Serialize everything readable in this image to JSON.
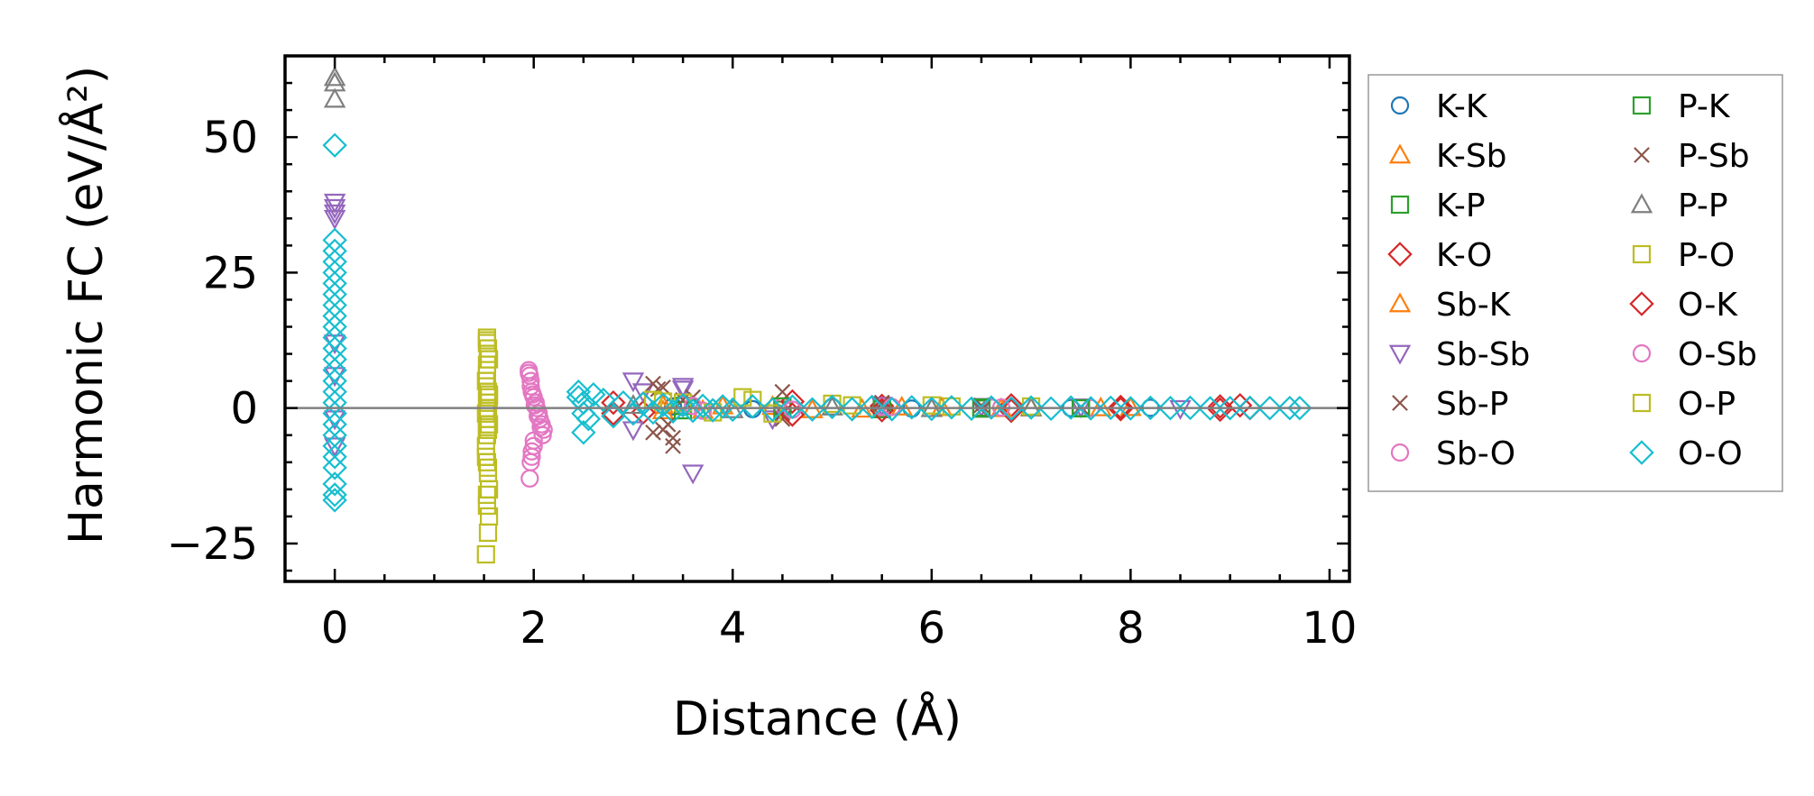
{
  "chart_data": {
    "type": "scatter",
    "title": "",
    "xlabel": "Distance (Å)",
    "ylabel": "Harmonic FC (eV/Å²)",
    "xlim": [
      -0.5,
      10.2
    ],
    "ylim": [
      -32,
      65
    ],
    "xticks": [
      0,
      2,
      4,
      6,
      8,
      10
    ],
    "yticks": [
      -25,
      0,
      25,
      50
    ],
    "ytick_labels": [
      "−25",
      "0",
      "25",
      "50"
    ],
    "xtick_labels": [
      "0",
      "2",
      "4",
      "6",
      "8",
      "10"
    ],
    "zero_line": true,
    "grid": false,
    "legend": {
      "placement": "outside-right",
      "columns": 2
    },
    "series": [
      {
        "name": "K-K",
        "marker": "circle",
        "color": "#1f77b4",
        "points": [
          [
            3.4,
            0.3
          ],
          [
            4.2,
            -0.2
          ],
          [
            5.0,
            0.2
          ],
          [
            5.8,
            -0.1
          ],
          [
            6.6,
            0.1
          ],
          [
            7.4,
            0.0
          ],
          [
            8.2,
            0.05
          ]
        ]
      },
      {
        "name": "K-Sb",
        "marker": "triangle-up",
        "color": "#ff7f0e",
        "points": [
          [
            3.3,
            0.5
          ],
          [
            3.7,
            -0.4
          ],
          [
            4.4,
            0.3
          ],
          [
            5.3,
            -0.2
          ],
          [
            6.1,
            0.1
          ],
          [
            7.0,
            0.0
          ],
          [
            8.0,
            0.1
          ]
        ]
      },
      {
        "name": "K-P",
        "marker": "square",
        "color": "#2ca02c",
        "points": [
          [
            3.5,
            0.4
          ],
          [
            4.5,
            -0.3
          ],
          [
            5.5,
            0.2
          ],
          [
            6.5,
            -0.1
          ],
          [
            7.5,
            0.05
          ]
        ]
      },
      {
        "name": "K-O",
        "marker": "diamond",
        "color": "#d62728",
        "points": [
          [
            2.8,
            1.0
          ],
          [
            3.1,
            -0.8
          ],
          [
            4.6,
            1.2
          ],
          [
            5.5,
            0.4
          ],
          [
            6.8,
            0.5
          ],
          [
            7.9,
            0.2
          ],
          [
            8.9,
            0.3
          ],
          [
            9.2,
            0.0
          ]
        ]
      },
      {
        "name": "Sb-K",
        "marker": "triangle-up",
        "color": "#ff7f0e",
        "points": [
          [
            3.3,
            -0.5
          ],
          [
            3.9,
            0.4
          ],
          [
            4.8,
            -0.3
          ],
          [
            5.7,
            0.2
          ],
          [
            6.7,
            -0.1
          ],
          [
            7.7,
            0.05
          ]
        ]
      },
      {
        "name": "Sb-Sb",
        "marker": "triangle-down",
        "color": "#9467bd",
        "points": [
          [
            0,
            38
          ],
          [
            0,
            37
          ],
          [
            0,
            36
          ],
          [
            0,
            35
          ],
          [
            0,
            12
          ],
          [
            0,
            6
          ],
          [
            0,
            -2
          ],
          [
            0,
            -7
          ],
          [
            3.0,
            5
          ],
          [
            3.0,
            -4
          ],
          [
            3.1,
            3
          ],
          [
            3.5,
            4
          ],
          [
            3.5,
            3.5
          ],
          [
            3.6,
            -12
          ],
          [
            4.4,
            -2
          ],
          [
            5.5,
            0.5
          ],
          [
            6.5,
            0.3
          ],
          [
            7.5,
            0.2
          ],
          [
            8.5,
            -0.1
          ]
        ]
      },
      {
        "name": "Sb-P",
        "marker": "x",
        "color": "#8c564b",
        "points": [
          [
            3.2,
            4.5
          ],
          [
            3.25,
            3.5
          ],
          [
            3.3,
            -4
          ],
          [
            3.35,
            -3
          ],
          [
            3.4,
            -7
          ],
          [
            3.6,
            2
          ],
          [
            4.5,
            3
          ],
          [
            4.5,
            -1
          ],
          [
            5.5,
            1
          ],
          [
            6.5,
            0.5
          ],
          [
            7.5,
            0.2
          ]
        ]
      },
      {
        "name": "Sb-O",
        "marker": "circle",
        "color": "#e377c2",
        "points": [
          [
            1.95,
            7
          ],
          [
            1.96,
            6
          ],
          [
            1.97,
            5
          ],
          [
            1.98,
            3
          ],
          [
            2.0,
            2
          ],
          [
            2.02,
            1
          ],
          [
            2.03,
            0
          ],
          [
            2.05,
            -1
          ],
          [
            2.06,
            -2
          ],
          [
            2.08,
            -3
          ],
          [
            2.1,
            -4
          ],
          [
            2.0,
            -6
          ],
          [
            1.98,
            -8
          ],
          [
            1.97,
            -10
          ],
          [
            1.96,
            -13
          ],
          [
            3.5,
            0.5
          ],
          [
            3.7,
            -0.5
          ],
          [
            4.5,
            0.3
          ],
          [
            5.5,
            0.2
          ],
          [
            6.6,
            0.1
          ],
          [
            7.6,
            0.0
          ]
        ]
      },
      {
        "name": "P-K",
        "marker": "square",
        "color": "#2ca02c",
        "points": [
          [
            3.5,
            -0.4
          ],
          [
            4.5,
            0.3
          ],
          [
            5.5,
            -0.2
          ],
          [
            6.5,
            0.1
          ],
          [
            7.5,
            -0.05
          ]
        ]
      },
      {
        "name": "P-Sb",
        "marker": "x",
        "color": "#8c564b",
        "points": [
          [
            3.2,
            -4.5
          ],
          [
            3.3,
            3.8
          ],
          [
            3.4,
            -5.5
          ],
          [
            3.5,
            1.5
          ],
          [
            4.5,
            -2
          ],
          [
            5.5,
            0.8
          ],
          [
            6.5,
            -0.3
          ]
        ]
      },
      {
        "name": "P-P",
        "marker": "triangle-up",
        "color": "#7f7f7f",
        "points": [
          [
            0,
            61
          ],
          [
            0,
            60
          ],
          [
            0,
            57
          ],
          [
            3.0,
            0.5
          ],
          [
            4.0,
            -0.3
          ],
          [
            5.0,
            0.2
          ],
          [
            6.0,
            -0.1
          ],
          [
            7.0,
            0.05
          ]
        ]
      },
      {
        "name": "P-O",
        "marker": "square",
        "color": "#bcbd22",
        "points": [
          [
            1.53,
            13
          ],
          [
            1.53,
            12
          ],
          [
            1.54,
            11
          ],
          [
            1.55,
            9
          ],
          [
            1.53,
            8
          ],
          [
            1.52,
            5
          ],
          [
            1.53,
            4
          ],
          [
            1.54,
            3
          ],
          [
            1.55,
            2
          ],
          [
            1.53,
            1
          ],
          [
            1.54,
            0
          ],
          [
            1.52,
            -1
          ],
          [
            1.53,
            -2
          ],
          [
            1.55,
            -3
          ],
          [
            1.54,
            -4
          ],
          [
            1.53,
            -5
          ],
          [
            1.52,
            -9
          ],
          [
            1.53,
            -10
          ],
          [
            1.54,
            -12
          ],
          [
            1.55,
            -15
          ],
          [
            1.53,
            -18
          ],
          [
            1.54,
            -23
          ],
          [
            1.52,
            -27
          ],
          [
            3.2,
            1.5
          ],
          [
            3.5,
            1.0
          ],
          [
            4.1,
            2.0
          ],
          [
            4.4,
            -1.0
          ],
          [
            5.0,
            0.8
          ],
          [
            6.0,
            0.5
          ],
          [
            7.0,
            0.3
          ]
        ]
      },
      {
        "name": "O-K",
        "marker": "diamond",
        "color": "#d62728",
        "points": [
          [
            2.8,
            -1.0
          ],
          [
            3.1,
            0.8
          ],
          [
            4.6,
            -1.2
          ],
          [
            5.5,
            -0.4
          ],
          [
            6.8,
            -0.5
          ],
          [
            7.9,
            -0.2
          ],
          [
            8.9,
            -0.3
          ],
          [
            9.1,
            0.5
          ]
        ]
      },
      {
        "name": "O-Sb",
        "marker": "circle",
        "color": "#e377c2",
        "points": [
          [
            1.95,
            6.5
          ],
          [
            1.97,
            4
          ],
          [
            1.99,
            2.5
          ],
          [
            2.01,
            0.5
          ],
          [
            2.04,
            -1.5
          ],
          [
            2.07,
            -3.5
          ],
          [
            2.09,
            -5
          ],
          [
            2.0,
            -7
          ],
          [
            1.98,
            -9
          ],
          [
            3.6,
            0.4
          ],
          [
            4.6,
            -0.3
          ],
          [
            5.6,
            0.2
          ],
          [
            6.7,
            0.1
          ]
        ]
      },
      {
        "name": "O-P",
        "marker": "square",
        "color": "#bcbd22",
        "points": [
          [
            1.53,
            12.5
          ],
          [
            1.54,
            10
          ],
          [
            1.53,
            6
          ],
          [
            1.55,
            2.5
          ],
          [
            1.54,
            -0.5
          ],
          [
            1.53,
            -3.5
          ],
          [
            1.52,
            -7
          ],
          [
            1.54,
            -11
          ],
          [
            1.53,
            -16
          ],
          [
            1.55,
            -20
          ],
          [
            3.3,
            1.2
          ],
          [
            3.8,
            -0.8
          ],
          [
            4.2,
            1.5
          ],
          [
            5.2,
            0.5
          ],
          [
            6.2,
            0.3
          ]
        ]
      },
      {
        "name": "O-O",
        "marker": "diamond",
        "color": "#17becf",
        "points": [
          [
            0,
            48.5
          ],
          [
            0,
            31
          ],
          [
            0,
            29
          ],
          [
            0,
            27
          ],
          [
            0,
            25
          ],
          [
            0,
            23
          ],
          [
            0,
            21
          ],
          [
            0,
            19
          ],
          [
            0,
            17
          ],
          [
            0,
            15
          ],
          [
            0,
            13
          ],
          [
            0,
            11
          ],
          [
            0,
            9
          ],
          [
            0,
            7
          ],
          [
            0,
            5
          ],
          [
            0,
            3
          ],
          [
            0,
            1
          ],
          [
            0,
            -1
          ],
          [
            0,
            -3
          ],
          [
            0,
            -5
          ],
          [
            0,
            -7
          ],
          [
            0,
            -9
          ],
          [
            0,
            -11
          ],
          [
            0,
            -14
          ],
          [
            0,
            -16
          ],
          [
            0,
            -17
          ],
          [
            2.45,
            3
          ],
          [
            2.45,
            2
          ],
          [
            2.5,
            1
          ],
          [
            2.5,
            -1
          ],
          [
            2.55,
            -2
          ],
          [
            2.5,
            -4.5
          ],
          [
            2.6,
            2.5
          ],
          [
            2.7,
            1.5
          ],
          [
            2.8,
            -1.5
          ],
          [
            2.9,
            1
          ],
          [
            3.0,
            -1
          ],
          [
            3.1,
            0.8
          ],
          [
            3.2,
            -0.8
          ],
          [
            3.3,
            0.6
          ],
          [
            3.4,
            -0.6
          ],
          [
            3.5,
            0.5
          ],
          [
            3.6,
            -0.5
          ],
          [
            3.7,
            0.4
          ],
          [
            3.8,
            -0.4
          ],
          [
            3.9,
            0.3
          ],
          [
            4.0,
            -0.3
          ],
          [
            4.2,
            0.3
          ],
          [
            4.4,
            -0.3
          ],
          [
            4.6,
            0.25
          ],
          [
            4.8,
            -0.25
          ],
          [
            5.0,
            0.2
          ],
          [
            5.2,
            -0.2
          ],
          [
            5.4,
            0.2
          ],
          [
            5.6,
            -0.2
          ],
          [
            5.8,
            0.15
          ],
          [
            6.0,
            -0.15
          ],
          [
            6.2,
            0.15
          ],
          [
            6.4,
            -0.1
          ],
          [
            6.6,
            0.1
          ],
          [
            6.8,
            -0.1
          ],
          [
            7.0,
            0.1
          ],
          [
            7.2,
            -0.1
          ],
          [
            7.4,
            0.1
          ],
          [
            7.6,
            -0.05
          ],
          [
            7.8,
            0.05
          ],
          [
            8.0,
            -0.05
          ],
          [
            8.2,
            0.05
          ],
          [
            8.4,
            0.0
          ],
          [
            8.6,
            0.05
          ],
          [
            8.8,
            -0.05
          ],
          [
            9.0,
            0.0
          ],
          [
            9.2,
            0.05
          ],
          [
            9.4,
            0.0
          ],
          [
            9.6,
            0.0
          ],
          [
            9.7,
            0.0
          ]
        ]
      }
    ]
  }
}
